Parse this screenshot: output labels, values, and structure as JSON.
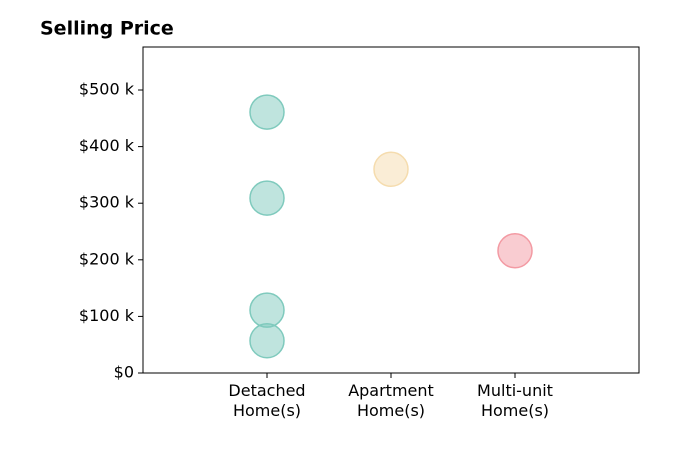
{
  "chart_data": {
    "type": "strip",
    "title": "Selling Price",
    "series": [
      {
        "name": "Detached Home(s)",
        "color": "#7fcabd",
        "values": [
          461000,
          309000,
          111000,
          57000
        ]
      },
      {
        "name": "Apartment Home(s)",
        "color": "#f5dcae",
        "values": [
          360000
        ]
      },
      {
        "name": "Multi-unit Home(s)",
        "color": "#f39aa3",
        "values": [
          216000
        ]
      }
    ],
    "opacity": 0.5,
    "ylim": [
      0,
      576000
    ],
    "yticks": [
      {
        "value": 0,
        "label": "$0"
      },
      {
        "value": 100000,
        "label": "$100 k"
      },
      {
        "value": 200000,
        "label": "$200 k"
      },
      {
        "value": 300000,
        "label": "$300 k"
      },
      {
        "value": 400000,
        "label": "$400 k"
      },
      {
        "value": 500000,
        "label": "$500 k"
      }
    ]
  }
}
